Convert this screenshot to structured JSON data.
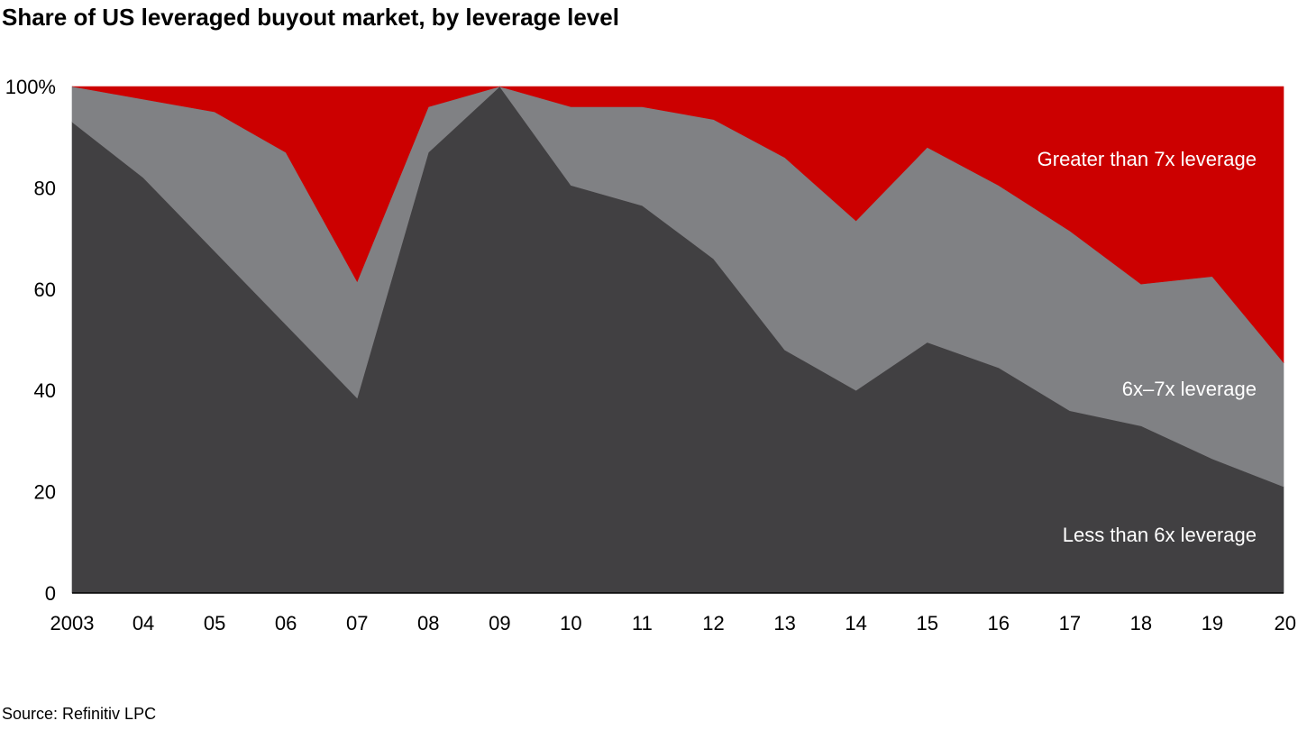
{
  "title": "Share of US leveraged buyout market, by leverage level",
  "source": "Source: Refinitiv LPC",
  "chart_data": {
    "type": "area",
    "stacked": true,
    "categories": [
      "2003",
      "04",
      "05",
      "06",
      "07",
      "08",
      "09",
      "10",
      "11",
      "12",
      "13",
      "14",
      "15",
      "16",
      "17",
      "18",
      "19",
      "20"
    ],
    "ylim": [
      0,
      100
    ],
    "yticks": [
      0,
      20,
      40,
      60,
      80,
      100
    ],
    "ytick_labels": [
      "0",
      "20",
      "40",
      "60",
      "80",
      "100%"
    ],
    "grid": false,
    "series": [
      {
        "name": "Less than 6x leverage",
        "color": "#414042",
        "label_color": "#ffffff",
        "values": [
          93,
          82,
          67.5,
          53,
          38.5,
          87,
          100,
          80.5,
          76.5,
          66,
          48,
          40,
          49.5,
          44.5,
          36,
          33,
          26.5,
          21
        ]
      },
      {
        "name": "6x–7x leverage",
        "color": "#808184",
        "label_color": "#ffffff",
        "values": [
          7,
          15.5,
          27.5,
          34,
          23,
          9,
          0,
          15.5,
          19.5,
          27.5,
          38,
          33.5,
          38.5,
          36,
          35.5,
          28,
          36,
          24.5
        ]
      },
      {
        "name": "Greater than 7x leverage",
        "color": "#cc0000",
        "label_color": "#ffffff",
        "values": [
          0,
          2.5,
          5,
          13,
          38.5,
          4,
          0,
          4,
          4,
          6.5,
          14,
          26.5,
          12,
          19.5,
          28.5,
          39,
          37.5,
          54.5
        ]
      }
    ]
  }
}
